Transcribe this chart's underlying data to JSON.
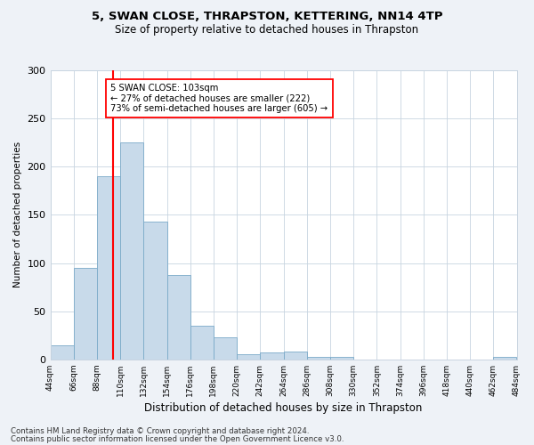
{
  "title": "5, SWAN CLOSE, THRAPSTON, KETTERING, NN14 4TP",
  "subtitle": "Size of property relative to detached houses in Thrapston",
  "xlabel": "Distribution of detached houses by size in Thrapston",
  "ylabel": "Number of detached properties",
  "bar_color": "#c8daea",
  "bar_edge_color": "#7aaac8",
  "bin_edges": [
    44,
    66,
    88,
    110,
    132,
    154,
    176,
    198,
    220,
    242,
    264,
    286,
    308,
    330,
    352,
    374,
    396,
    418,
    440,
    462,
    484
  ],
  "bar_heights": [
    15,
    95,
    190,
    225,
    143,
    88,
    35,
    23,
    5,
    7,
    8,
    3,
    3,
    0,
    0,
    0,
    0,
    0,
    0,
    3
  ],
  "vline_x": 103,
  "vline_color": "red",
  "annotation_text": "5 SWAN CLOSE: 103sqm\n← 27% of detached houses are smaller (222)\n73% of semi-detached houses are larger (605) →",
  "annotation_box_color": "white",
  "annotation_box_edge": "red",
  "ylim": [
    0,
    300
  ],
  "yticks": [
    0,
    50,
    100,
    150,
    200,
    250,
    300
  ],
  "footnote1": "Contains HM Land Registry data © Crown copyright and database right 2024.",
  "footnote2": "Contains public sector information licensed under the Open Government Licence v3.0.",
  "background_color": "#eef2f7",
  "plot_background": "white",
  "grid_color": "#c8d4e0"
}
